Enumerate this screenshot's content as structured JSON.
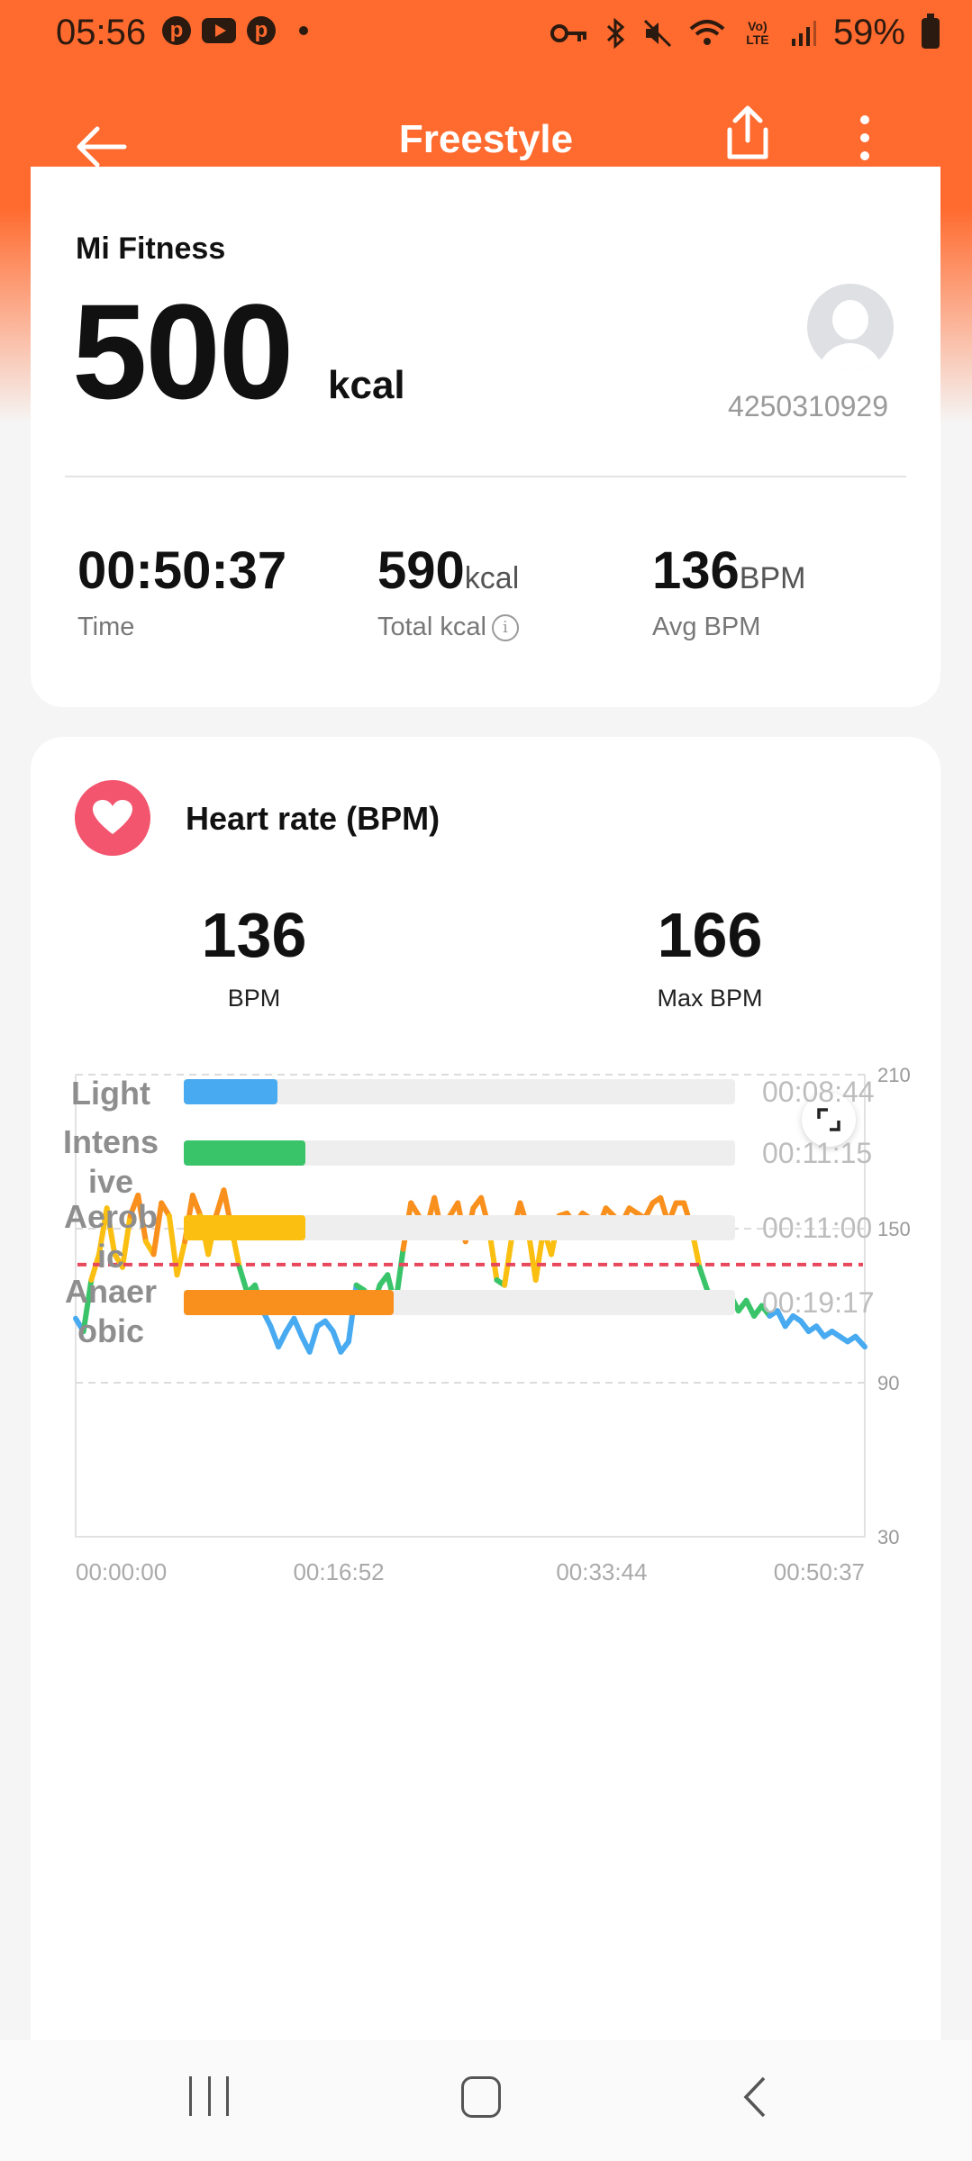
{
  "status_bar": {
    "time": "05:56",
    "notification_icons": [
      "pinterest-icon",
      "youtube-icon",
      "pinterest-icon"
    ],
    "battery": "59%",
    "network": "Vo) LTE"
  },
  "header": {
    "title": "Freestyle",
    "back_icon": "arrow-left-icon",
    "share_icon": "share-icon",
    "more_icon": "more-vertical-icon"
  },
  "summary": {
    "brand": "Mi Fitness",
    "calories": "500",
    "calories_unit": "kcal",
    "user_id": "4250310929",
    "stats": [
      {
        "value": "00:50:37",
        "unit": "",
        "label": "Time"
      },
      {
        "value": "590",
        "unit": "kcal",
        "label": "Total kcal"
      },
      {
        "value": "136",
        "unit": "BPM",
        "label": "Avg BPM"
      }
    ]
  },
  "heart_rate": {
    "title": "Heart rate (BPM)",
    "avg_value": "136",
    "avg_label": "BPM",
    "max_value": "166",
    "max_label": "Max BPM"
  },
  "chart_data": {
    "type": "line",
    "title": "",
    "ylim": [
      30,
      210
    ],
    "y_ticks": [
      "210",
      "150",
      "90",
      "30"
    ],
    "x_tick_labels": [
      "00:00:00",
      "00:16:52",
      "00:33:44",
      "00:50:37"
    ],
    "average_line": 136,
    "grid": true,
    "x_minutes": [
      0,
      0.5,
      1,
      1.5,
      2,
      2.5,
      3,
      3.5,
      4,
      4.5,
      5,
      5.5,
      6,
      6.5,
      7,
      7.5,
      8,
      8.5,
      9,
      9.5,
      10,
      10.5,
      11,
      11.5,
      12,
      12.5,
      13,
      13.5,
      14,
      14.5,
      15,
      15.5,
      16,
      16.5,
      17,
      17.5,
      18,
      18.5,
      19,
      19.5,
      20,
      20.5,
      21,
      21.5,
      22,
      22.5,
      23,
      23.5,
      24,
      24.5,
      25,
      25.5,
      26,
      26.5,
      27,
      27.5,
      28,
      28.5,
      29,
      29.5,
      30,
      30.5,
      31,
      31.5,
      32,
      32.5,
      33,
      33.5,
      34,
      34.5,
      35,
      35.5,
      36,
      36.5,
      37,
      37.5,
      38,
      38.5,
      39,
      39.5,
      40,
      40.5,
      41,
      41.5,
      42,
      42.5,
      43,
      43.5,
      44,
      44.5,
      45,
      45.5,
      46,
      46.5,
      47,
      47.5,
      48,
      48.5,
      49,
      49.5,
      50,
      50.6
    ],
    "bpm": [
      115,
      110,
      130,
      140,
      158,
      140,
      135,
      155,
      163,
      145,
      140,
      160,
      155,
      132,
      145,
      163,
      155,
      140,
      155,
      165,
      150,
      135,
      125,
      128,
      118,
      112,
      104,
      110,
      115,
      108,
      102,
      112,
      114,
      110,
      102,
      106,
      128,
      126,
      118,
      128,
      132,
      120,
      142,
      160,
      155,
      150,
      162,
      148,
      155,
      160,
      145,
      158,
      162,
      150,
      130,
      128,
      148,
      160,
      150,
      130,
      150,
      140,
      155,
      156,
      152,
      156,
      154,
      150,
      158,
      155,
      152,
      158,
      156,
      154,
      160,
      162,
      152,
      160,
      160,
      150,
      135,
      126,
      120,
      118,
      124,
      118,
      122,
      116,
      120,
      116,
      118,
      112,
      116,
      114,
      110,
      112,
      108,
      110,
      108,
      106,
      108,
      104
    ],
    "zone_colors": {
      "light": "#48aaf0",
      "intensive": "#3ac46a",
      "aerobic": "#fbbf12",
      "anaerobic": "#f98f1c"
    },
    "average_line_color": "#e8475c"
  },
  "zones": [
    {
      "label": "Light",
      "time": "00:08:44",
      "fraction": 0.17,
      "color": "#48aaf0"
    },
    {
      "label": "Intens ive",
      "time": "00:11:15",
      "fraction": 0.22,
      "color": "#3ac46a"
    },
    {
      "label": "Aerob ic",
      "time": "00:11:00",
      "fraction": 0.22,
      "color": "#fbbf12"
    },
    {
      "label": "Anaer obic",
      "time": "00:19:17",
      "fraction": 0.38,
      "color": "#f98f1c"
    }
  ],
  "nav": {
    "recents_icon": "recents-icon",
    "home_icon": "home-icon",
    "back_icon": "back-chevron-icon"
  }
}
